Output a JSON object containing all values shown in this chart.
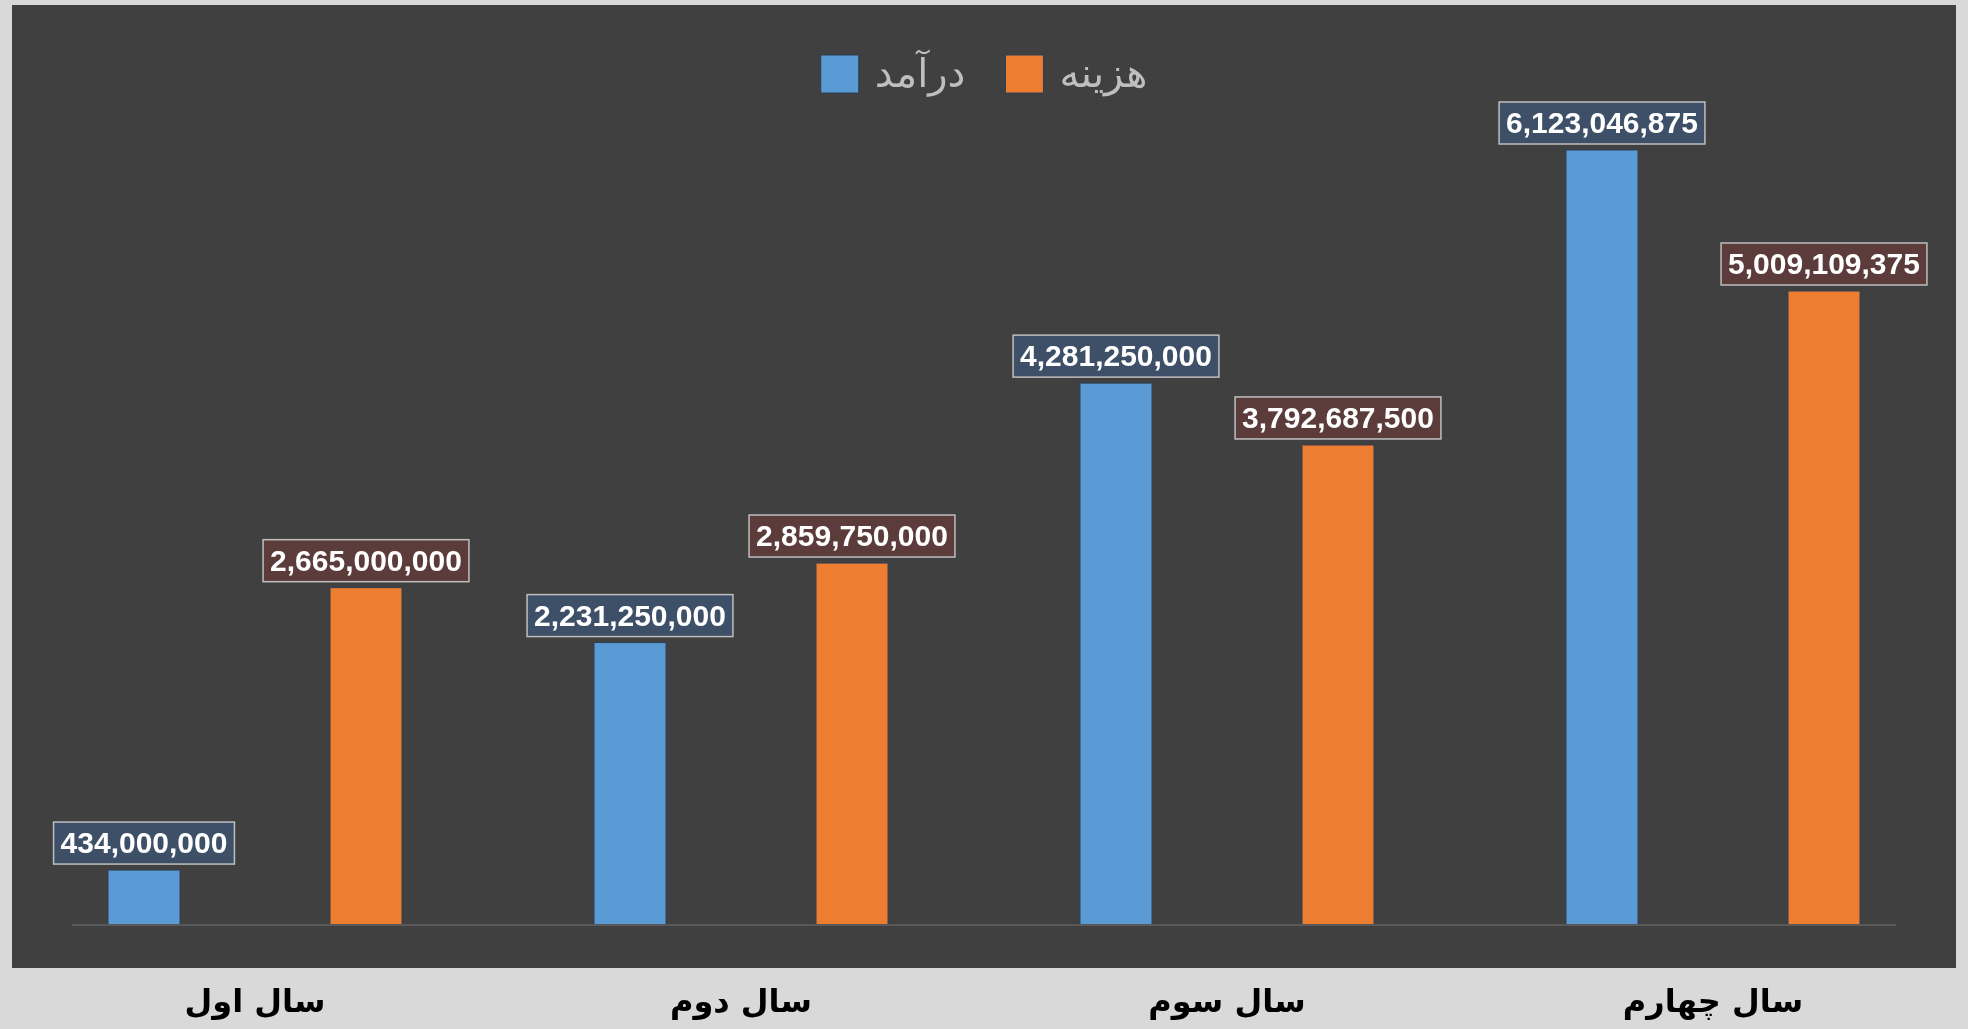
{
  "chart_data": {
    "type": "bar",
    "categories": [
      "سال اول",
      "سال دوم",
      "سال سوم",
      "سال چهارم"
    ],
    "legend": "top",
    "series": [
      {
        "name": "درآمد",
        "color": "#5b9bd5",
        "values": [
          434000000,
          2231250000,
          4281250000,
          6123046875
        ],
        "value_labels": [
          "434,000,000",
          "2,231,250,000",
          "4,281,250,000",
          "6,123,046,875"
        ]
      },
      {
        "name": "هزینه",
        "color": "#ed7d31",
        "values": [
          2665000000,
          2859750000,
          3792687500,
          5009109375
        ],
        "value_labels": [
          "2,665,000,000",
          "2,859,750,000",
          "3,792,687,500",
          "5,009,109,375"
        ]
      }
    ]
  }
}
